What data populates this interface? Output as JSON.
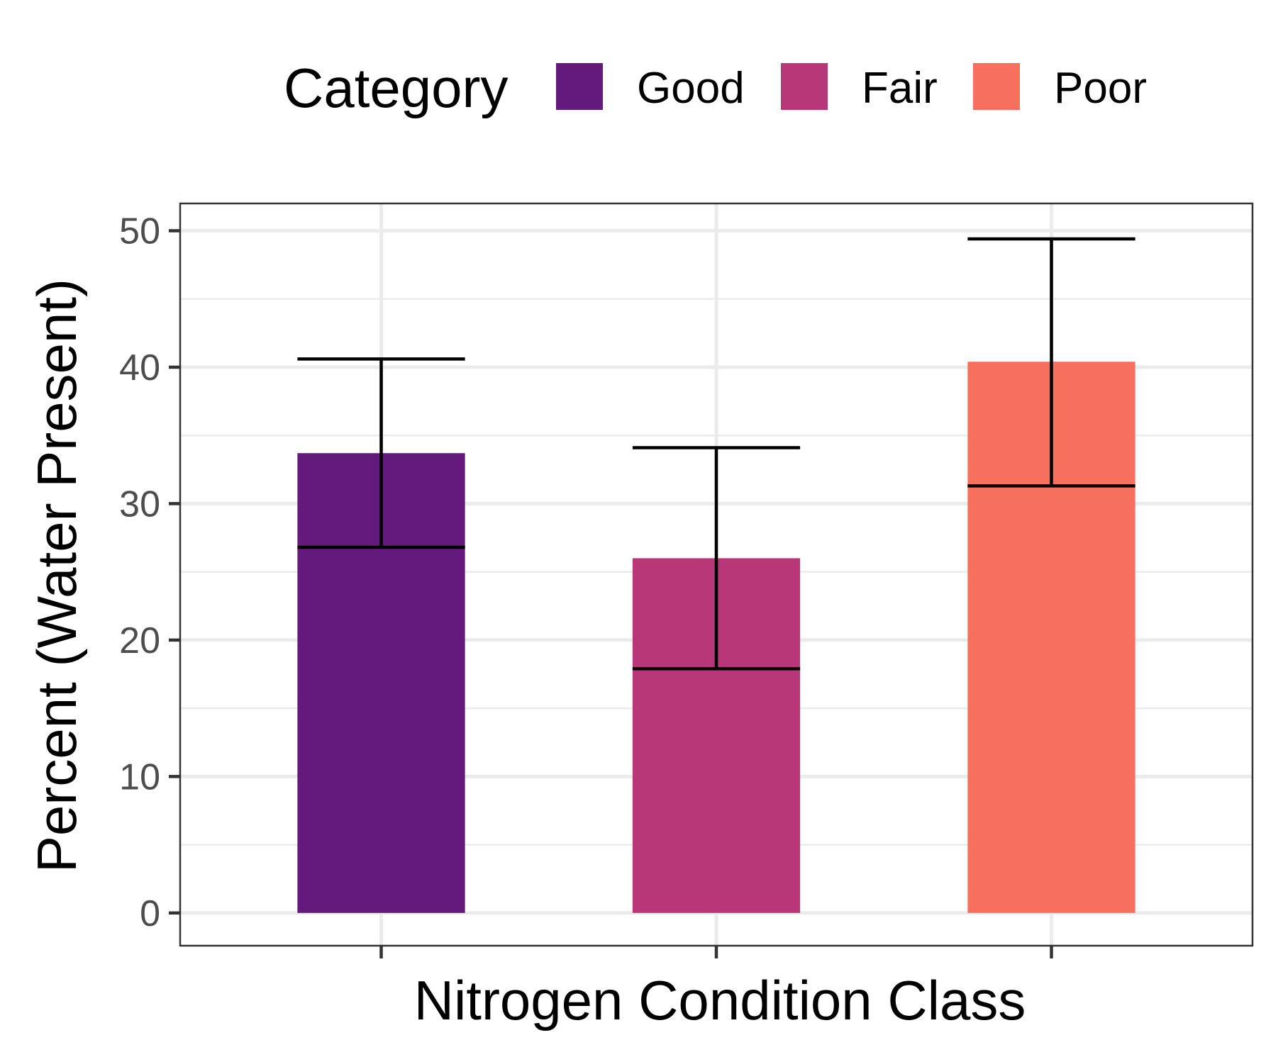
{
  "chart_data": {
    "type": "bar",
    "title": "",
    "xlabel": "Nitrogen Condition Class",
    "ylabel": "Percent (Water Present)",
    "ylim": [
      -2.4,
      52
    ],
    "yticks": [
      0,
      10,
      20,
      30,
      40,
      50
    ],
    "grid": true,
    "legend": {
      "title": "Category",
      "position": "top"
    },
    "categories": [
      "Good",
      "Fair",
      "Poor"
    ],
    "values": [
      33.7,
      26.0,
      40.4
    ],
    "error_lower": [
      26.8,
      17.9,
      31.3
    ],
    "error_upper": [
      40.6,
      34.1,
      49.4
    ],
    "colors": [
      "#641a7c",
      "#b73779",
      "#f6705d"
    ]
  }
}
